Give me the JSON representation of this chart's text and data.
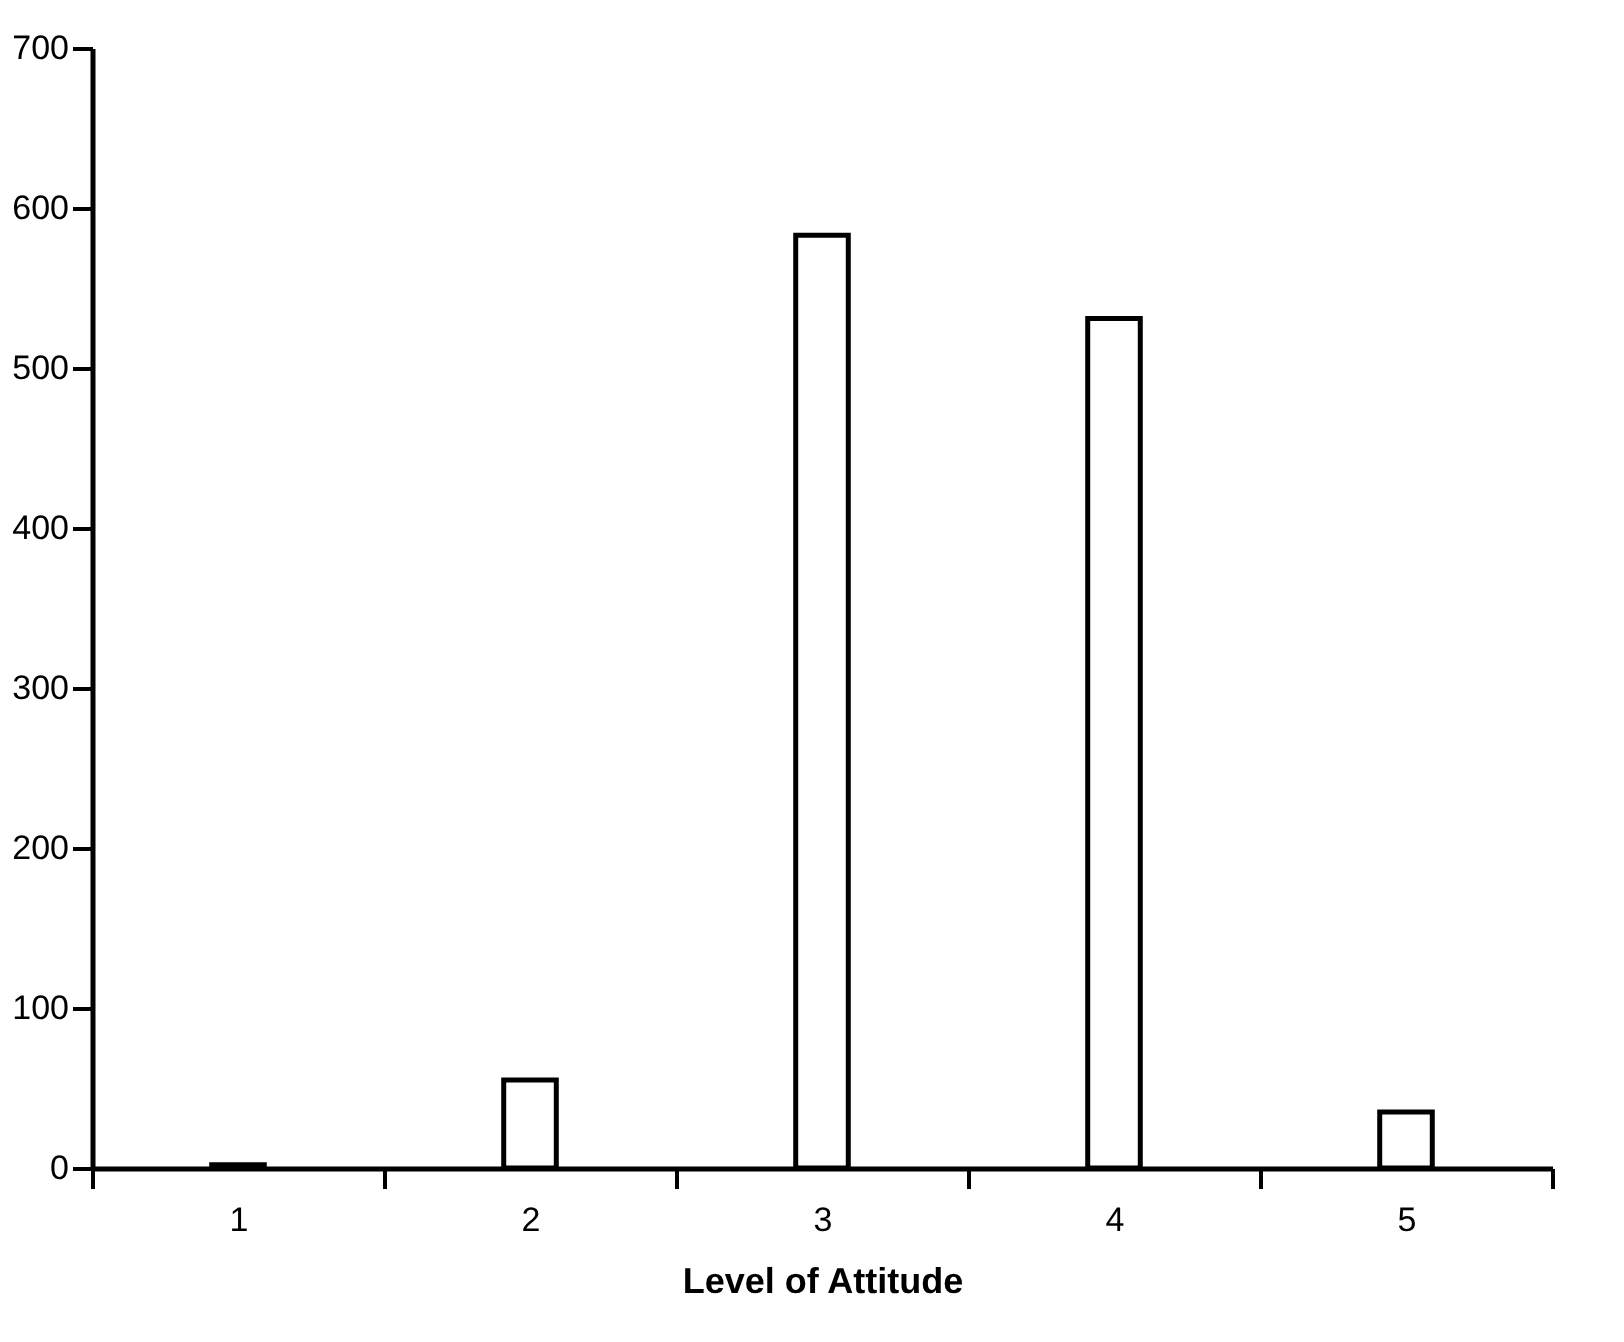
{
  "chart_data": {
    "type": "bar",
    "xlabel": "Level of Attitude",
    "categories": [
      "1",
      "2",
      "3",
      "4",
      "5"
    ],
    "values": [
      2,
      55,
      583,
      531,
      35
    ],
    "color": "#ffffff",
    "ylim": [
      0,
      700
    ],
    "yticks": [
      0,
      100,
      200,
      300,
      400,
      500,
      600,
      700
    ],
    "grid": false
  }
}
